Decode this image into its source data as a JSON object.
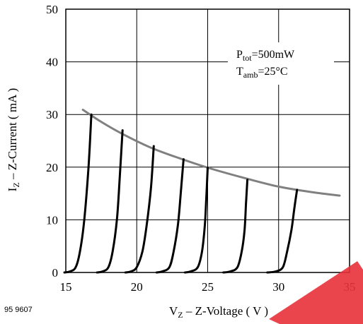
{
  "chart_data": {
    "type": "line",
    "title": "",
    "xlabel": {
      "main": "V",
      "sub": "Z",
      "rest": " – Z-Voltage ( V )"
    },
    "ylabel": {
      "main": "I",
      "sub": "Z",
      "rest": " – Z-Current ( mA )"
    },
    "xlim": [
      15,
      35
    ],
    "ylim": [
      0,
      50
    ],
    "x_ticks": [
      "15",
      "20",
      "25",
      "30",
      "35"
    ],
    "y_ticks": [
      "0",
      "10",
      "20",
      "30",
      "40",
      "50"
    ],
    "grid": true,
    "annotations": [
      {
        "id": "ptot",
        "main": "P",
        "sub": "tot",
        "rest": "=500mW"
      },
      {
        "id": "tamb",
        "main": "T",
        "sub": "amb",
        "rest": "=25°C"
      }
    ],
    "figure_id": "95 9607",
    "colors": {
      "curves": "#000000",
      "power_limit": "#808080",
      "grid": "#000000"
    },
    "power_limit_curve": {
      "name": "",
      "x": [
        16.2,
        17.5,
        19.0,
        21.0,
        23.0,
        25.0,
        27.5,
        30.0,
        32.5,
        34.3
      ],
      "y": [
        30.9,
        28.6,
        26.3,
        23.7,
        21.7,
        19.9,
        18.0,
        16.3,
        15.2,
        14.6
      ]
    },
    "series": [
      {
        "x": [
          14.9,
          15.3,
          15.7,
          16.0,
          16.3,
          16.6,
          16.8
        ],
        "y": [
          0,
          0.2,
          1,
          4,
          10,
          20,
          30
        ]
      },
      {
        "x": [
          17.2,
          17.6,
          18.0,
          18.3,
          18.6,
          18.8,
          19.0
        ],
        "y": [
          0,
          0.2,
          1,
          4,
          10,
          18,
          27
        ]
      },
      {
        "x": [
          19.2,
          19.6,
          20.0,
          20.4,
          20.7,
          21.0,
          21.2
        ],
        "y": [
          0,
          0.2,
          1,
          4,
          9,
          16,
          24
        ]
      },
      {
        "x": [
          21.4,
          21.8,
          22.3,
          22.6,
          22.9,
          23.1,
          23.3
        ],
        "y": [
          0,
          0.2,
          1,
          4,
          9,
          15,
          21.5
        ]
      },
      {
        "x": [
          23.4,
          23.8,
          24.3,
          24.6,
          24.8,
          24.9,
          25.0
        ],
        "y": [
          0,
          0.2,
          1,
          4,
          9,
          14,
          19.9
        ]
      },
      {
        "x": [
          26.1,
          26.6,
          27.1,
          27.4,
          27.6,
          27.7,
          27.8
        ],
        "y": [
          0,
          0.2,
          1,
          4,
          8,
          13,
          17.6
        ]
      },
      {
        "x": [
          29.2,
          29.8,
          30.3,
          30.6,
          30.9,
          31.1,
          31.3
        ],
        "y": [
          0,
          0.2,
          1,
          4,
          8,
          12,
          15.7
        ]
      }
    ]
  }
}
